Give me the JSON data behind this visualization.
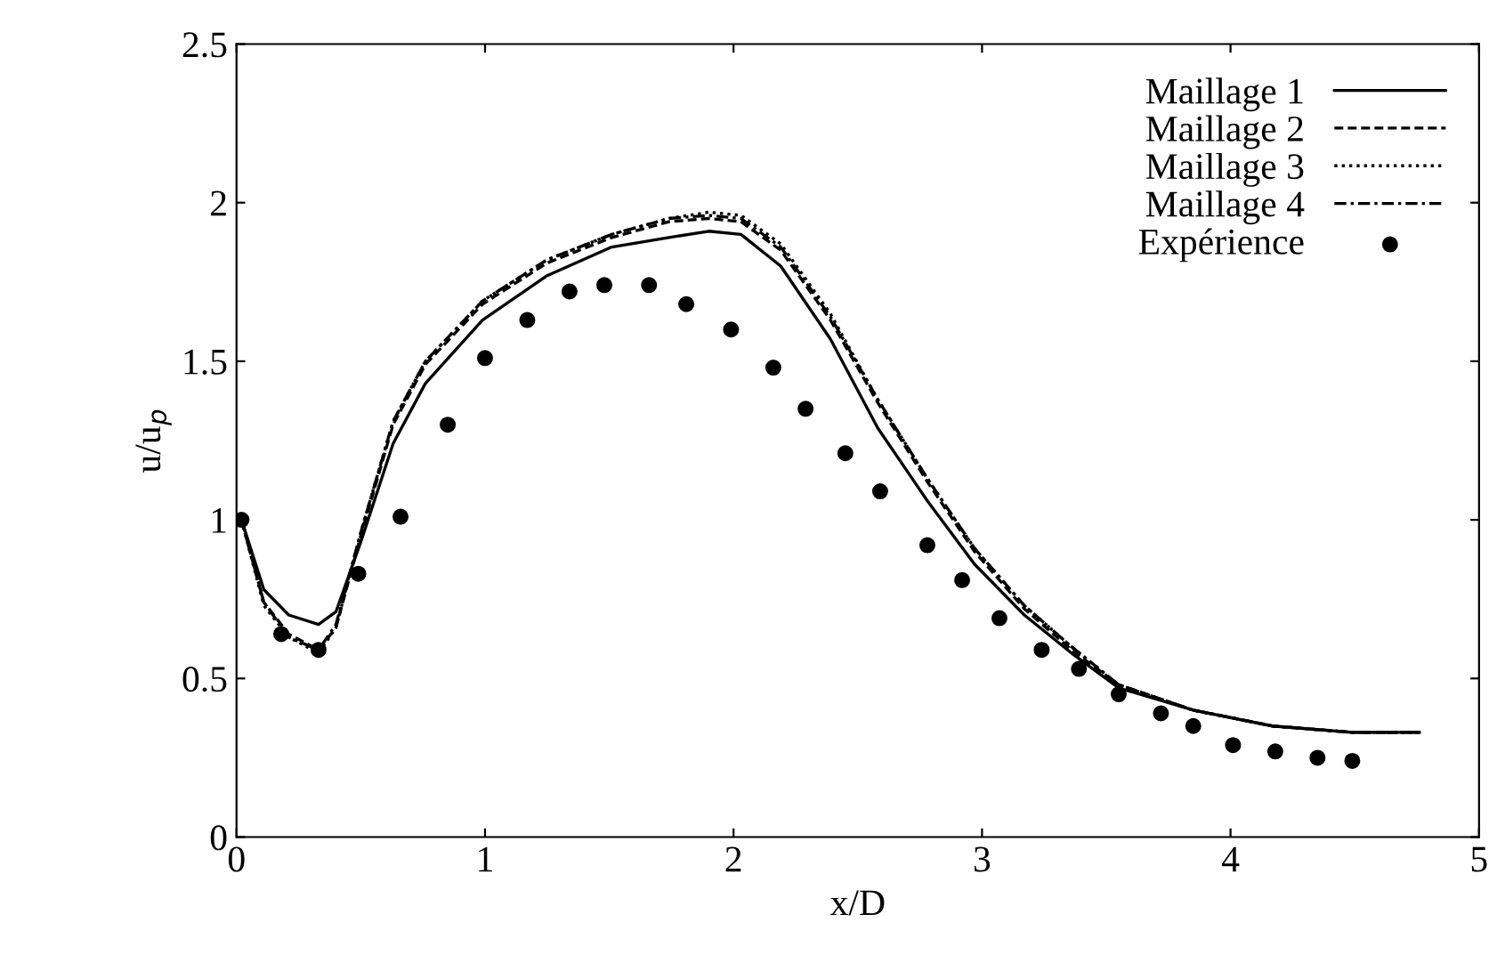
{
  "chart_data": {
    "type": "line",
    "xlabel": "x/D",
    "ylabel": "u/u$_{p}$",
    "xlim": [
      0,
      5
    ],
    "ylim": [
      0,
      2.5
    ],
    "xticks": [
      0,
      1,
      2,
      3,
      4,
      5
    ],
    "yticks": [
      0,
      0.5,
      1,
      1.5,
      2,
      2.5
    ],
    "grid": false,
    "legend": "top right",
    "x": [
      0.02,
      0.11,
      0.21,
      0.33,
      0.4,
      0.5,
      0.63,
      0.76,
      0.99,
      1.25,
      1.51,
      1.74,
      1.9,
      2.03,
      2.19,
      2.39,
      2.58,
      2.78,
      2.97,
      3.17,
      3.36,
      3.55,
      3.85,
      4.17,
      4.49,
      4.76
    ],
    "series": [
      {
        "name": "Maillage 1",
        "color": "#000000",
        "line_style": "solid",
        "marker": "none",
        "values": [
          1.0,
          0.78,
          0.7,
          0.67,
          0.71,
          0.93,
          1.24,
          1.43,
          1.63,
          1.77,
          1.86,
          1.89,
          1.91,
          1.9,
          1.8,
          1.57,
          1.29,
          1.06,
          0.86,
          0.7,
          0.58,
          0.47,
          0.4,
          0.35,
          0.33,
          0.33
        ]
      },
      {
        "name": "Maillage 2",
        "color": "#000000",
        "line_style": "dashed",
        "marker": "none",
        "values": [
          1.0,
          0.74,
          0.64,
          0.59,
          0.66,
          0.95,
          1.3,
          1.49,
          1.68,
          1.81,
          1.89,
          1.94,
          1.95,
          1.94,
          1.85,
          1.63,
          1.37,
          1.12,
          0.9,
          0.72,
          0.59,
          0.48,
          0.4,
          0.35,
          0.33,
          0.33
        ]
      },
      {
        "name": "Maillage 3",
        "color": "#000000",
        "line_style": "dotted",
        "marker": "none",
        "values": [
          1.0,
          0.73,
          0.63,
          0.58,
          0.66,
          0.96,
          1.31,
          1.5,
          1.69,
          1.82,
          1.9,
          1.95,
          1.97,
          1.96,
          1.87,
          1.65,
          1.38,
          1.13,
          0.91,
          0.73,
          0.6,
          0.48,
          0.4,
          0.35,
          0.33,
          0.33
        ]
      },
      {
        "name": "Maillage 4",
        "color": "#000000",
        "line_style": "dashdot",
        "marker": "none",
        "values": [
          1.0,
          0.74,
          0.63,
          0.59,
          0.67,
          0.96,
          1.31,
          1.5,
          1.69,
          1.82,
          1.9,
          1.95,
          1.96,
          1.95,
          1.86,
          1.64,
          1.38,
          1.13,
          0.91,
          0.73,
          0.6,
          0.48,
          0.4,
          0.35,
          0.33,
          0.33
        ]
      },
      {
        "name": "Expérience",
        "type": "scatter",
        "color": "#000000",
        "marker": "circle",
        "x": [
          0.02,
          0.18,
          0.33,
          0.49,
          0.66,
          0.85,
          1.0,
          1.17,
          1.34,
          1.48,
          1.66,
          1.81,
          1.99,
          2.16,
          2.29,
          2.45,
          2.59,
          2.78,
          2.92,
          3.07,
          3.24,
          3.39,
          3.55,
          3.72,
          3.85,
          4.01,
          4.18,
          4.35,
          4.49
        ],
        "values": [
          1.0,
          0.64,
          0.59,
          0.83,
          1.01,
          1.3,
          1.51,
          1.63,
          1.72,
          1.74,
          1.74,
          1.68,
          1.6,
          1.48,
          1.35,
          1.21,
          1.09,
          0.92,
          0.81,
          0.69,
          0.59,
          0.53,
          0.45,
          0.39,
          0.35,
          0.29,
          0.27,
          0.25,
          0.24
        ]
      }
    ]
  }
}
